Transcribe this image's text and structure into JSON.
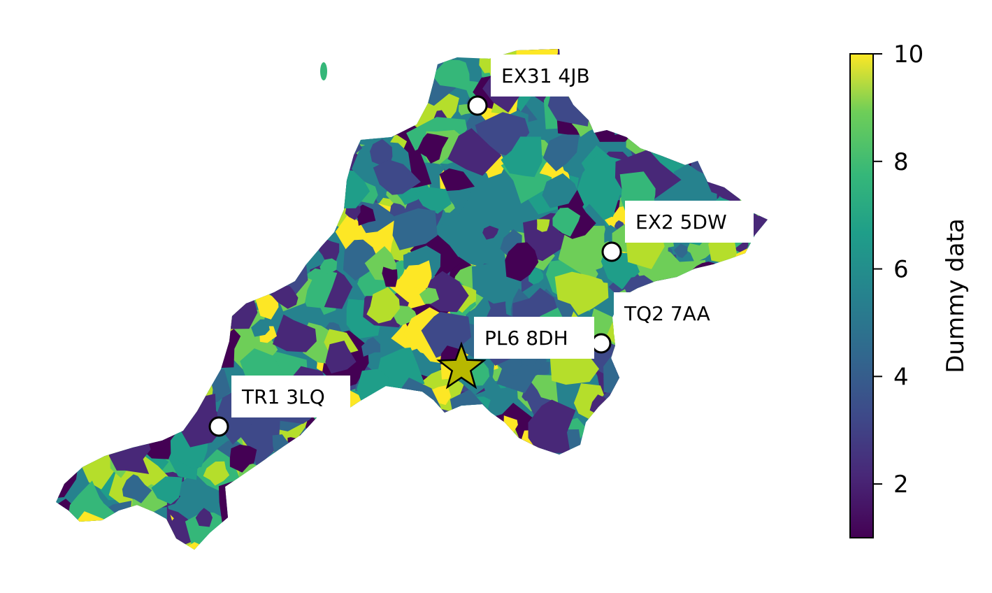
{
  "map": {
    "colormap": "viridis",
    "markers": [
      {
        "label": "EX31 4JB",
        "symbol": "circle",
        "fill": "#ffffff"
      },
      {
        "label": "EX2 5DW",
        "symbol": "circle",
        "fill": "#ffffff"
      },
      {
        "label": "TQ2 7AA",
        "symbol": "circle",
        "fill": "#ffffff"
      },
      {
        "label": "PL6 8DH",
        "symbol": "star",
        "fill": "#b8b800"
      },
      {
        "label": "TR1 3LQ",
        "symbol": "circle",
        "fill": "#ffffff"
      }
    ]
  },
  "colorbar": {
    "title": "Dummy data",
    "min": 1,
    "max": 10,
    "ticks": [
      "2",
      "4",
      "6",
      "8",
      "10"
    ]
  }
}
